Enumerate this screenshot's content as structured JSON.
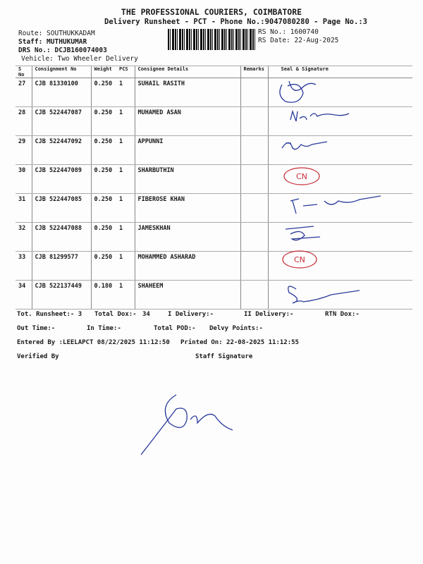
{
  "header": {
    "company": "THE PROFESSIONAL COURIERS, COIMBATORE",
    "subtitle": "Delivery Runsheet - PCT - Phone No.:9047080280 - Page No.:3",
    "route": "Route: SOUTHUKKADAM",
    "staff": "Staff: MUTHUKUMAR",
    "drs": "DRS No.: DCJB160074003",
    "vehicle": "Vehicle: Two Wheeler Delivery",
    "rs_no": "RS No.: 1600740",
    "rs_date": "RS Date: 22-Aug-2025"
  },
  "table": {
    "columns": [
      "S No",
      "Consignment No",
      "Weight",
      "PCS",
      "Consignee Details",
      "Remarks",
      "Seal & Signature"
    ],
    "rows": [
      {
        "sno": "27",
        "consignment": "CJB 81330100",
        "weight": "0.250",
        "pcs": "1",
        "consignee": "SUHAIL RASITH",
        "signature": "handwritten"
      },
      {
        "sno": "28",
        "consignment": "CJB 522447087",
        "weight": "0.250",
        "pcs": "1",
        "consignee": "MUHAMED ASAN",
        "signature": "handwritten"
      },
      {
        "sno": "29",
        "consignment": "CJB 522447092",
        "weight": "0.250",
        "pcs": "1",
        "consignee": "APPUNNI",
        "signature": "handwritten"
      },
      {
        "sno": "30",
        "consignment": "CJB 522447089",
        "weight": "0.250",
        "pcs": "1",
        "consignee": "SHARBUTHIN",
        "signature": "stamp"
      },
      {
        "sno": "31",
        "consignment": "CJB 522447085",
        "weight": "0.250",
        "pcs": "1",
        "consignee": "FIBEROSE KHAN",
        "signature": "handwritten"
      },
      {
        "sno": "32",
        "consignment": "CJB 522447088",
        "weight": "0.250",
        "pcs": "1",
        "consignee": "JAMESKHAN",
        "signature": "handwritten"
      },
      {
        "sno": "33",
        "consignment": "CJB 81299577",
        "weight": "0.250",
        "pcs": "1",
        "consignee": "MOHAMMED ASHARAD",
        "signature": "stamp"
      },
      {
        "sno": "34",
        "consignment": "CJB 522137449",
        "weight": "0.180",
        "pcs": "1",
        "consignee": "SHAHEEM",
        "signature": "handwritten"
      }
    ]
  },
  "footer": {
    "tot_runsheet": "Tot. Runsheet:- 3",
    "total_dox": "Total Dox:-",
    "total_dox_value": "34",
    "i_delivery": "I Delivery:-",
    "ii_delivery": "II Delivery:-",
    "rtn_dox": "RTN Dox:-",
    "out_time": "Out Time:-",
    "in_time": "In Time:-",
    "total_pod": "Total POD:-",
    "delvy_points": "Delvy Points:-",
    "entered_by": "Entered By :LEELAPCT 08/22/2025 11:12:50",
    "printed_on": "Printed On: 22-08-2025 11:12:55",
    "verified_by": "Verified By",
    "staff_signature": "Staff Signature"
  },
  "stamp_text": "CN",
  "colors": {
    "ink_blue": "#2a3a9a",
    "stamp_red": "#c8303a"
  }
}
